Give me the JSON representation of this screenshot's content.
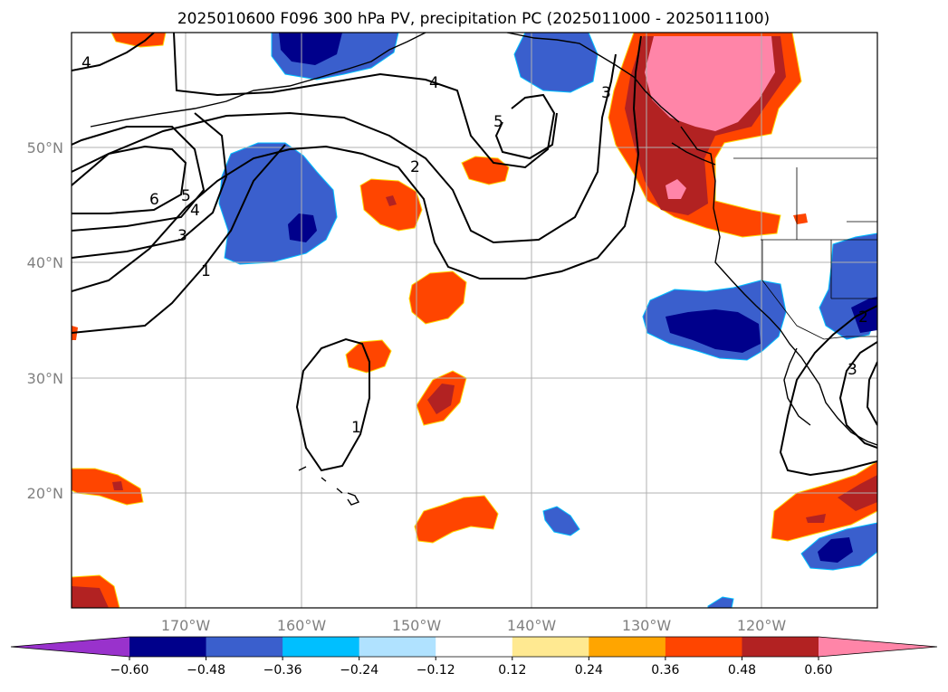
{
  "title": "2025010600 F096 300 hPa PV, precipitation PC (2025011000 - 2025011100)",
  "lon_ticks": [
    {
      "label": "170°W",
      "value": -170
    },
    {
      "label": "160°W",
      "value": -160
    },
    {
      "label": "150°W",
      "value": -150
    },
    {
      "label": "140°W",
      "value": -140
    },
    {
      "label": "130°W",
      "value": -130
    },
    {
      "label": "120°W",
      "value": -120
    }
  ],
  "lat_ticks": [
    {
      "label": "50°N",
      "value": 50
    },
    {
      "label": "40°N",
      "value": 40
    },
    {
      "label": "30°N",
      "value": 30
    },
    {
      "label": "20°N",
      "value": 20
    }
  ],
  "colorbar": {
    "colors": [
      "#9932CC",
      "#00008B",
      "#3A5FCD",
      "#00BFFF",
      "#B0E2FF",
      "#FFFFFF",
      "#FFE991",
      "#FFA500",
      "#FF4500",
      "#B22222",
      "#FF85A8"
    ],
    "labels": [
      "−0.60",
      "−0.48",
      "−0.36",
      "−0.24",
      "−0.12",
      "0.12",
      "0.24",
      "0.36",
      "0.48",
      "0.60"
    ]
  },
  "contour_labels": [
    "4",
    "4",
    "5",
    "2",
    "6",
    "5",
    "4",
    "3",
    "1",
    "1",
    "3",
    "2",
    "3"
  ],
  "colors": {
    "pos_outer": "#FF4500",
    "pos_mid": "#B22222",
    "pos_core": "#FF85A8",
    "neg_outer": "#3A5FCD",
    "neg_core": "#00008B",
    "grid": "#b0b0b0"
  }
}
